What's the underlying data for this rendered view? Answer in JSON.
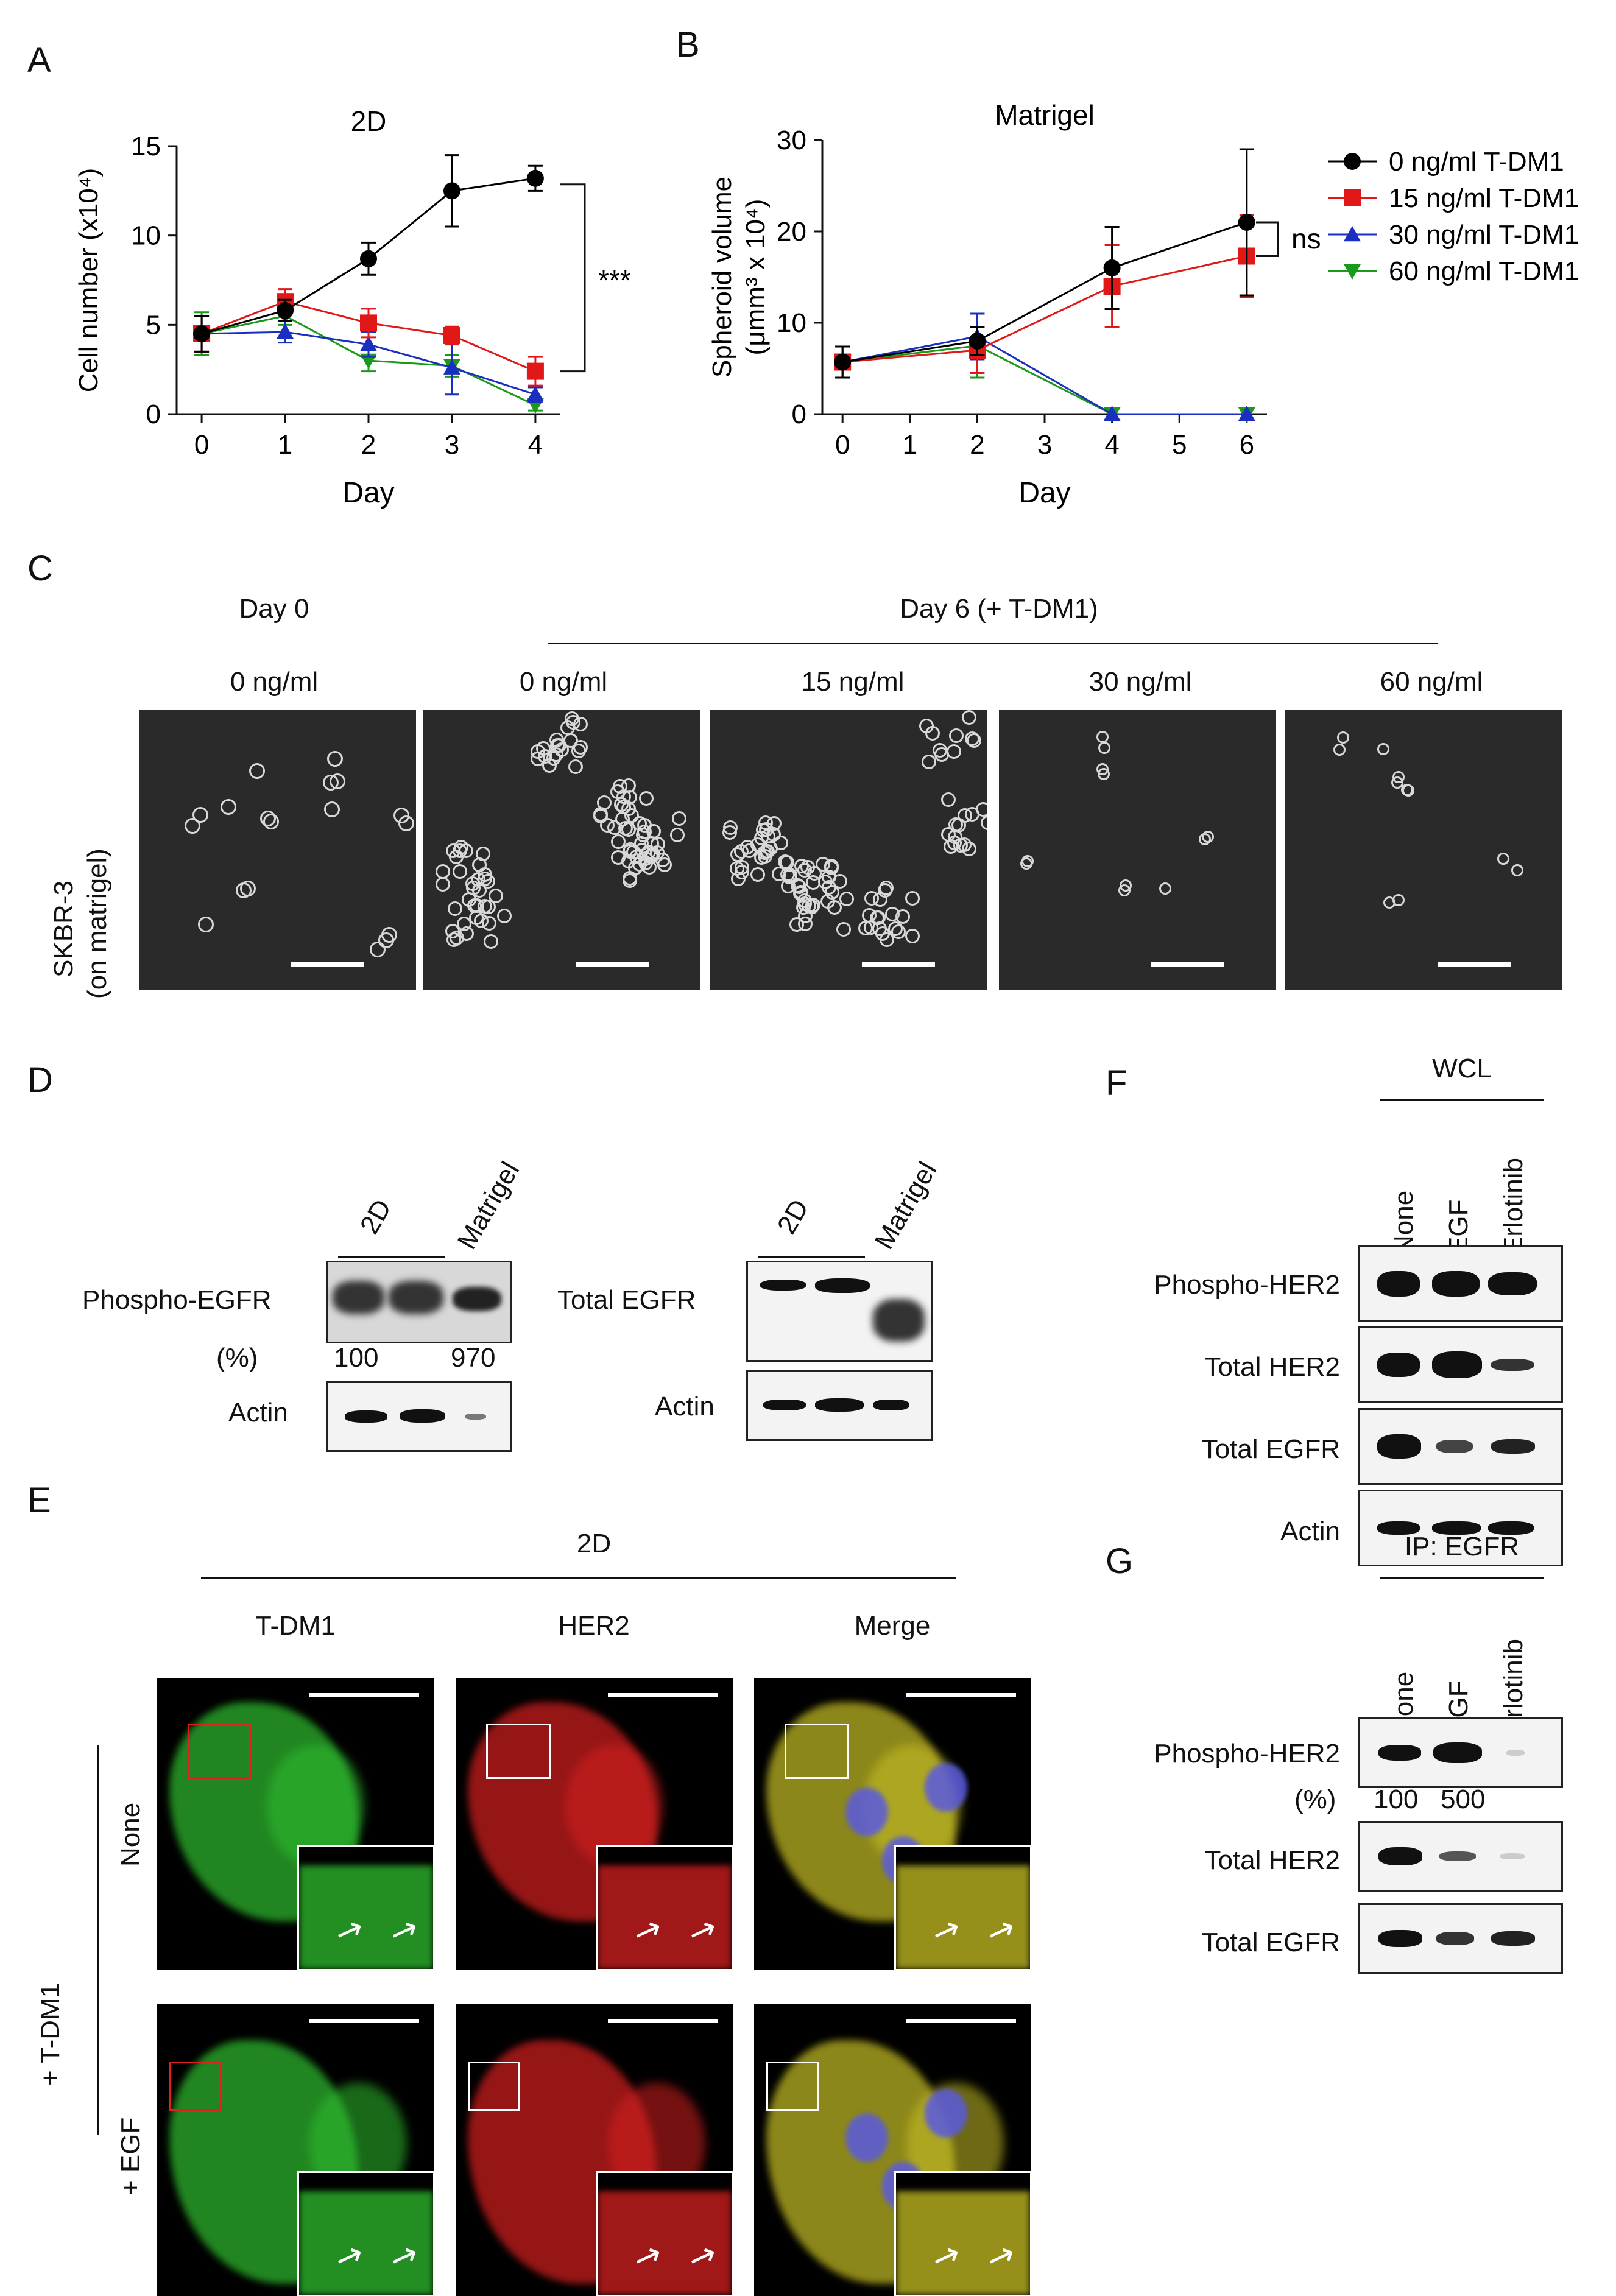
{
  "panel_labels": {
    "A": "A",
    "B": "B",
    "C": "C",
    "D": "D",
    "E": "E",
    "F": "F",
    "G": "G"
  },
  "chart_data": [
    {
      "type": "line",
      "title": "2D",
      "xlabel": "Day",
      "ylabel": "Cell number (x10⁴)",
      "x": [
        0,
        1,
        2,
        3,
        4
      ],
      "xlim": [
        -0.3,
        4.3
      ],
      "ylim": [
        0,
        15
      ],
      "yticks": [
        0,
        5,
        10,
        15
      ],
      "series": [
        {
          "name": "0 ng/ml T-DM1",
          "color": "#000000",
          "marker": "circle",
          "values": [
            4.5,
            5.8,
            8.7,
            12.5,
            13.2
          ],
          "errors": [
            1.0,
            0.6,
            0.9,
            2.0,
            0.7
          ]
        },
        {
          "name": "15 ng/ml T-DM1",
          "color": "#e01818",
          "marker": "square",
          "values": [
            4.5,
            6.3,
            5.1,
            4.4,
            2.4
          ],
          "errors": [
            1.0,
            0.7,
            0.8,
            0.5,
            0.8
          ]
        },
        {
          "name": "30 ng/ml T-DM1",
          "color": "#1a2fbf",
          "marker": "triangle-up",
          "values": [
            4.5,
            4.6,
            3.9,
            2.6,
            1.1
          ],
          "errors": [
            1.0,
            0.6,
            0.7,
            1.5,
            0.4
          ]
        },
        {
          "name": "60 ng/ml T-DM1",
          "color": "#1a9a1a",
          "marker": "triangle-down",
          "values": [
            4.5,
            5.5,
            3.0,
            2.7,
            0.5
          ],
          "errors": [
            1.2,
            0.5,
            0.6,
            0.6,
            0.3
          ]
        }
      ],
      "annotation": "***"
    },
    {
      "type": "line",
      "title": "Matrigel",
      "xlabel": "Day",
      "ylabel_line1": "Spheroid volume",
      "ylabel_line2": "(μmm³ x 10⁴)",
      "x_ticks": [
        0,
        1,
        2,
        3,
        4,
        5,
        6
      ],
      "x": [
        0,
        2,
        4,
        6
      ],
      "xlim": [
        -0.3,
        6.3
      ],
      "ylim": [
        0,
        30
      ],
      "yticks": [
        0,
        10,
        20,
        30
      ],
      "series": [
        {
          "name": "0 ng/ml T-DM1",
          "color": "#000000",
          "marker": "circle",
          "values": [
            5.7,
            8.0,
            16.0,
            21.0
          ],
          "errors": [
            1.7,
            1.5,
            4.5,
            8.0
          ]
        },
        {
          "name": "15 ng/ml T-DM1",
          "color": "#e01818",
          "marker": "square",
          "values": [
            5.7,
            7.0,
            14.0,
            17.3
          ],
          "errors": [
            1.7,
            2.5,
            4.5,
            4.5
          ]
        },
        {
          "name": "30 ng/ml T-DM1",
          "color": "#1a2fbf",
          "marker": "triangle-up",
          "values": [
            5.7,
            8.5,
            0,
            0
          ],
          "errors": [
            1.7,
            2.5,
            0,
            0
          ]
        },
        {
          "name": "60 ng/ml T-DM1",
          "color": "#1a9a1a",
          "marker": "triangle-down",
          "values": [
            5.7,
            7.5,
            0,
            0
          ],
          "errors": [
            1.7,
            3.5,
            0,
            0
          ]
        }
      ],
      "annotation": "ns"
    }
  ],
  "panel_c": {
    "day0": "Day 0",
    "day6": "Day 6 (+ T-DM1)",
    "row_label_1": "SKBR-3",
    "row_label_2": "(on matrigel)",
    "conditions": [
      "0 ng/ml",
      "0 ng/ml",
      "15 ng/ml",
      "30 ng/ml",
      "60 ng/ml"
    ]
  },
  "panel_d": {
    "col_2d": "2D",
    "col_matrigel": "Matrigel",
    "phospho_egfr": "Phospho-EGFR",
    "percent": "(%)",
    "pct_2d": "100",
    "pct_matrigel": "970",
    "actin": "Actin",
    "total_egfr": "Total EGFR"
  },
  "panel_e": {
    "header": "2D",
    "columns": [
      "T-DM1",
      "HER2",
      "Merge"
    ],
    "side_label": "+ T-DM1",
    "rows": [
      "None",
      "+ EGF"
    ]
  },
  "panel_f": {
    "header": "WCL",
    "columns": [
      "None",
      "EGF",
      "Erlotinib"
    ],
    "rows": [
      "Phospho-HER2",
      "Total HER2",
      "Total EGFR",
      "Actin"
    ]
  },
  "panel_g": {
    "header": "IP: EGFR",
    "columns": [
      "None",
      "EGF",
      "Erlotinib"
    ],
    "rows": [
      "Phospho-HER2",
      "Total HER2",
      "Total EGFR"
    ],
    "percent": "(%)",
    "pct_values": [
      "100",
      "500"
    ]
  }
}
